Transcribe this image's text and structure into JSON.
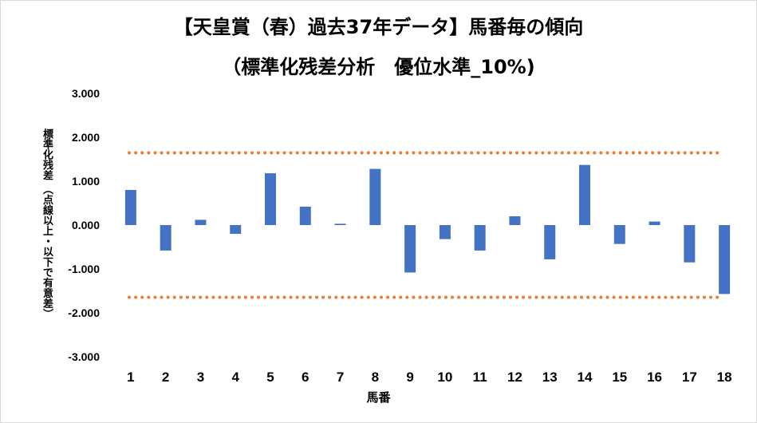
{
  "chart_data": {
    "type": "bar",
    "title": "【天皇賞（春）過去37年データ】馬番毎の傾向",
    "subtitle": "（標準化残差分析　優位水準_10%)",
    "xlabel": "馬番",
    "ylabel": "標準化残差",
    "ylabel_note": "（点線以上・以下で有意差）",
    "categories": [
      "1",
      "2",
      "3",
      "4",
      "5",
      "6",
      "7",
      "8",
      "9",
      "10",
      "11",
      "12",
      "13",
      "14",
      "15",
      "16",
      "17",
      "18"
    ],
    "values": [
      0.8,
      -0.58,
      0.12,
      -0.2,
      1.18,
      0.42,
      0.03,
      1.28,
      -1.08,
      -0.32,
      -0.58,
      0.2,
      -0.78,
      1.37,
      -0.43,
      0.08,
      -0.85,
      -1.57
    ],
    "ylim": [
      -3,
      3
    ],
    "yticks": [
      "3.000",
      "2.000",
      "1.000",
      "0.000",
      "-1.000",
      "-2.000",
      "-3.000"
    ],
    "threshold": 1.645,
    "colors": {
      "bar": "#4472c4",
      "threshold": "#ed7d31"
    },
    "grid": false,
    "legend": "none"
  }
}
